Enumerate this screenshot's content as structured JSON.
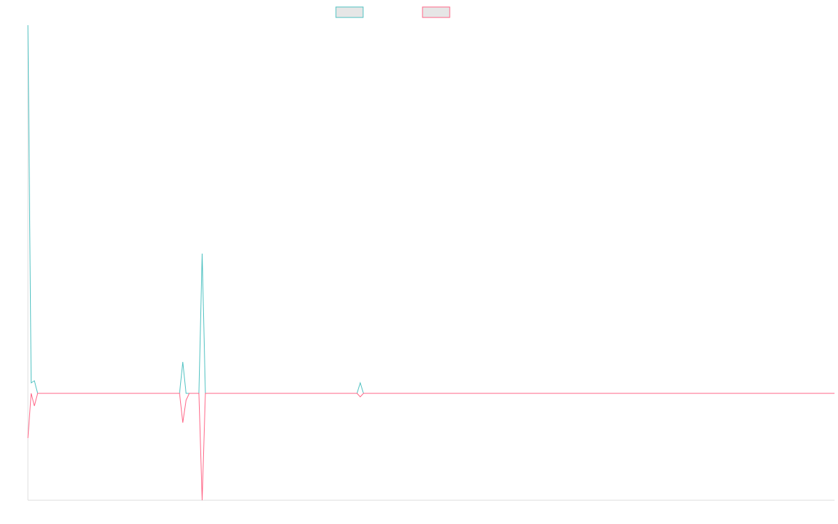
{
  "chart_data": {
    "type": "line",
    "x": [
      0,
      1,
      2,
      3,
      35,
      47,
      48,
      49,
      50,
      53,
      54,
      55,
      102,
      103,
      104,
      250
    ],
    "xlim": [
      0,
      250
    ],
    "ylim": [
      -15.3,
      52.7
    ],
    "series": [
      {
        "color": "#4bc0c0",
        "values": [
          52.7,
          1.5,
          1.8,
          0,
          0,
          0,
          4.5,
          0,
          0,
          0,
          20,
          0,
          0,
          1.5,
          0,
          0
        ]
      },
      {
        "color": "#ff6384",
        "values": [
          -6.4,
          0,
          -1.8,
          0,
          0,
          0,
          -4.2,
          -1,
          0,
          0,
          -15.3,
          0,
          0,
          -0.5,
          0,
          0
        ]
      }
    ]
  }
}
